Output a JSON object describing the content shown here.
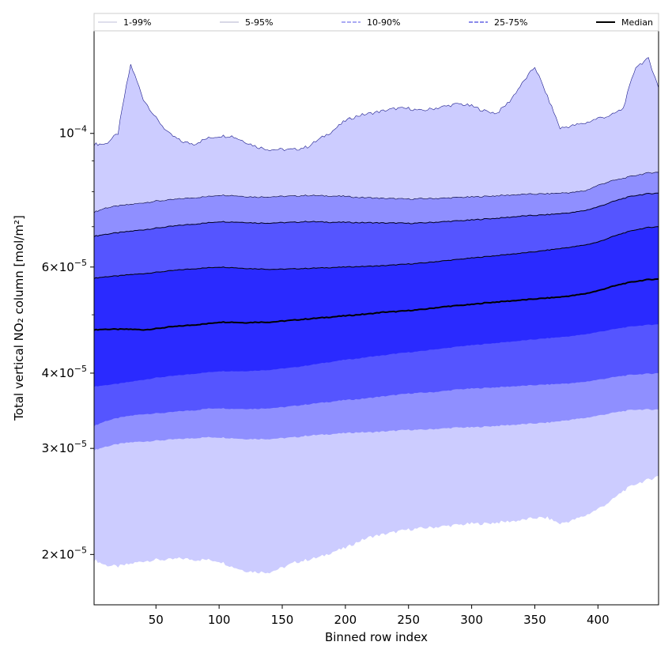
{
  "chart_data": {
    "type": "area",
    "xlabel": "Binned row index",
    "ylabel": "Total vertical NO₂ column [mol/m²]",
    "yscale": "log",
    "xlim": [
      1,
      448
    ],
    "ylim": [
      1.65e-05,
      0.000148
    ],
    "xticks": [
      50,
      100,
      150,
      200,
      250,
      300,
      350,
      400
    ],
    "yticks": [
      {
        "value": 2e-05,
        "mantissa": "2",
        "exp": "−5"
      },
      {
        "value": 3e-05,
        "mantissa": "3",
        "exp": "−5"
      },
      {
        "value": 4e-05,
        "mantissa": "4",
        "exp": "−5"
      },
      {
        "value": 6e-05,
        "mantissa": "6",
        "exp": "−5"
      },
      {
        "value": 0.0001,
        "mantissa": "",
        "exp": "−4"
      }
    ],
    "grid": false,
    "legend": {
      "placement": "top",
      "entries": [
        {
          "label": "1-99%",
          "style": "thin-line"
        },
        {
          "label": "5-95%",
          "style": "thin-line"
        },
        {
          "label": "10-90%",
          "style": "dashed"
        },
        {
          "label": "25-75%",
          "style": "dashed"
        },
        {
          "label": "Median",
          "style": "solid-thick"
        }
      ]
    },
    "colors": {
      "band_5_95": "#ccccff",
      "band_10_90": "#8f8fff",
      "band_25_75": "#5555ff",
      "band_inner": "#2a2aff",
      "median": "#000000",
      "line_1_99": "#1a1a8c"
    },
    "x": [
      1,
      10,
      20,
      30,
      40,
      50,
      60,
      70,
      80,
      90,
      100,
      110,
      120,
      130,
      140,
      150,
      160,
      170,
      180,
      190,
      200,
      210,
      220,
      230,
      240,
      250,
      260,
      270,
      280,
      290,
      300,
      310,
      320,
      330,
      340,
      350,
      360,
      370,
      380,
      390,
      400,
      410,
      420,
      430,
      440,
      448
    ],
    "series": [
      {
        "name": "1-99%",
        "low": [
          1.96e-05,
          1.92e-05,
          1.91e-05,
          1.93e-05,
          1.95e-05,
          1.96e-05,
          1.96e-05,
          1.97e-05,
          1.96e-05,
          1.96e-05,
          1.95e-05,
          1.91e-05,
          1.88e-05,
          1.87e-05,
          1.87e-05,
          1.9e-05,
          1.94e-05,
          1.96e-05,
          1.98e-05,
          2.02e-05,
          2.05e-05,
          2.1e-05,
          2.14e-05,
          2.16e-05,
          2.18e-05,
          2.2e-05,
          2.21e-05,
          2.22e-05,
          2.23e-05,
          2.24e-05,
          2.25e-05,
          2.25e-05,
          2.26e-05,
          2.27e-05,
          2.28e-05,
          2.3e-05,
          2.3e-05,
          2.25e-05,
          2.28e-05,
          2.32e-05,
          2.38e-05,
          2.45e-05,
          2.55e-05,
          2.62e-05,
          2.66e-05,
          2.7e-05
        ],
        "high": [
          9.6e-05,
          9.6e-05,
          0.0001,
          0.00013,
          0.000114,
          0.000106,
          0.0001,
          9.7e-05,
          9.6e-05,
          9.8e-05,
          9.9e-05,
          9.9e-05,
          9.7e-05,
          9.5e-05,
          9.4e-05,
          9.4e-05,
          9.4e-05,
          9.5e-05,
          9.8e-05,
          0.000101,
          0.000105,
          0.000107,
          0.000108,
          0.000109,
          0.00011,
          0.00011,
          0.000109,
          0.00011,
          0.000111,
          0.000112,
          0.000111,
          0.000109,
          0.000108,
          0.000113,
          0.000121,
          0.000129,
          0.000115,
          0.000102,
          0.000103,
          0.000104,
          0.000106,
          0.000107,
          0.00011,
          0.000129,
          0.000133,
          0.000119
        ]
      },
      {
        "name": "5-95%",
        "low": [
          2.98e-05,
          3.02e-05,
          3.05e-05,
          3.07e-05,
          3.08e-05,
          3.09e-05,
          3.1e-05,
          3.11e-05,
          3.12e-05,
          3.13e-05,
          3.13e-05,
          3.12e-05,
          3.11e-05,
          3.11e-05,
          3.11e-05,
          3.12e-05,
          3.13e-05,
          3.15e-05,
          3.16e-05,
          3.17e-05,
          3.18e-05,
          3.19e-05,
          3.19e-05,
          3.2e-05,
          3.21e-05,
          3.22e-05,
          3.22e-05,
          3.23e-05,
          3.24e-05,
          3.25e-05,
          3.25e-05,
          3.26e-05,
          3.27e-05,
          3.28e-05,
          3.29e-05,
          3.3e-05,
          3.31e-05,
          3.33e-05,
          3.35e-05,
          3.37e-05,
          3.4e-05,
          3.43e-05,
          3.46e-05,
          3.48e-05,
          3.48e-05,
          3.48e-05
        ],
        "high": [
          7.4e-05,
          7.52e-05,
          7.58e-05,
          7.62e-05,
          7.67e-05,
          7.72e-05,
          7.75e-05,
          7.79e-05,
          7.82e-05,
          7.85e-05,
          7.9e-05,
          7.89e-05,
          7.86e-05,
          7.84e-05,
          7.85e-05,
          7.86e-05,
          7.87e-05,
          7.89e-05,
          7.88e-05,
          7.87e-05,
          7.86e-05,
          7.83e-05,
          7.82e-05,
          7.8e-05,
          7.79e-05,
          7.78e-05,
          7.79e-05,
          7.8e-05,
          7.81e-05,
          7.83e-05,
          7.84e-05,
          7.86e-05,
          7.88e-05,
          7.9e-05,
          7.92e-05,
          7.93e-05,
          7.94e-05,
          7.96e-05,
          7.98e-05,
          8.03e-05,
          8.2e-05,
          8.33e-05,
          8.42e-05,
          8.52e-05,
          8.6e-05,
          8.62e-05
        ]
      },
      {
        "name": "10-90%",
        "low": [
          3.27e-05,
          3.33e-05,
          3.37e-05,
          3.4e-05,
          3.42e-05,
          3.43e-05,
          3.44e-05,
          3.46e-05,
          3.47e-05,
          3.49e-05,
          3.5e-05,
          3.49e-05,
          3.49e-05,
          3.49e-05,
          3.5e-05,
          3.51e-05,
          3.53e-05,
          3.55e-05,
          3.57e-05,
          3.59e-05,
          3.61e-05,
          3.62e-05,
          3.64e-05,
          3.66e-05,
          3.68e-05,
          3.7e-05,
          3.71e-05,
          3.72e-05,
          3.74e-05,
          3.76e-05,
          3.77e-05,
          3.78e-05,
          3.79e-05,
          3.8e-05,
          3.81e-05,
          3.82e-05,
          3.83e-05,
          3.84e-05,
          3.85e-05,
          3.87e-05,
          3.9e-05,
          3.93e-05,
          3.96e-05,
          3.98e-05,
          3.99e-05,
          4e-05
        ],
        "high": [
          6.75e-05,
          6.8e-05,
          6.84e-05,
          6.88e-05,
          6.92e-05,
          6.96e-05,
          7e-05,
          7.04e-05,
          7.07e-05,
          7.1e-05,
          7.14e-05,
          7.13e-05,
          7.12e-05,
          7.1e-05,
          7.1e-05,
          7.11e-05,
          7.12e-05,
          7.14e-05,
          7.13e-05,
          7.12e-05,
          7.12e-05,
          7.11e-05,
          7.11e-05,
          7.1e-05,
          7.1e-05,
          7.09e-05,
          7.1e-05,
          7.12e-05,
          7.14e-05,
          7.16e-05,
          7.18e-05,
          7.21e-05,
          7.23e-05,
          7.26e-05,
          7.29e-05,
          7.31e-05,
          7.33e-05,
          7.36e-05,
          7.39e-05,
          7.45e-05,
          7.55e-05,
          7.68e-05,
          7.8e-05,
          7.89e-05,
          7.94e-05,
          7.96e-05
        ]
      },
      {
        "name": "25-75%",
        "low": [
          3.8e-05,
          3.82e-05,
          3.84e-05,
          3.87e-05,
          3.9e-05,
          3.93e-05,
          3.95e-05,
          3.97e-05,
          3.99e-05,
          4.01e-05,
          4.03e-05,
          4.03e-05,
          4.03e-05,
          4.04e-05,
          4.05e-05,
          4.07e-05,
          4.09e-05,
          4.12e-05,
          4.15e-05,
          4.18e-05,
          4.21e-05,
          4.23e-05,
          4.26e-05,
          4.28e-05,
          4.31e-05,
          4.33e-05,
          4.35e-05,
          4.38e-05,
          4.4e-05,
          4.43e-05,
          4.45e-05,
          4.47e-05,
          4.49e-05,
          4.51e-05,
          4.53e-05,
          4.55e-05,
          4.57e-05,
          4.59e-05,
          4.61e-05,
          4.64e-05,
          4.68e-05,
          4.72e-05,
          4.76e-05,
          4.79e-05,
          4.81e-05,
          4.82e-05
        ],
        "high": [
          5.75e-05,
          5.78e-05,
          5.8e-05,
          5.83e-05,
          5.85e-05,
          5.88e-05,
          5.91e-05,
          5.94e-05,
          5.96e-05,
          5.98e-05,
          6e-05,
          5.99e-05,
          5.97e-05,
          5.96e-05,
          5.95e-05,
          5.95e-05,
          5.96e-05,
          5.97e-05,
          5.98e-05,
          5.99e-05,
          6e-05,
          6.01e-05,
          6.02e-05,
          6.03e-05,
          6.05e-05,
          6.07e-05,
          6.09e-05,
          6.12e-05,
          6.15e-05,
          6.18e-05,
          6.21e-05,
          6.24e-05,
          6.27e-05,
          6.3e-05,
          6.33e-05,
          6.36e-05,
          6.4e-05,
          6.44e-05,
          6.48e-05,
          6.53e-05,
          6.6e-05,
          6.72e-05,
          6.83e-05,
          6.92e-05,
          6.98e-05,
          7e-05
        ]
      },
      {
        "name": "Median",
        "values": [
          4.72e-05,
          4.73e-05,
          4.73e-05,
          4.73e-05,
          4.72e-05,
          4.74e-05,
          4.77e-05,
          4.79e-05,
          4.81e-05,
          4.83e-05,
          4.86e-05,
          4.86e-05,
          4.85e-05,
          4.86e-05,
          4.86e-05,
          4.88e-05,
          4.9e-05,
          4.92e-05,
          4.94e-05,
          4.96e-05,
          4.98e-05,
          5e-05,
          5.02e-05,
          5.05e-05,
          5.06e-05,
          5.08e-05,
          5.1e-05,
          5.13e-05,
          5.16e-05,
          5.18e-05,
          5.2e-05,
          5.23e-05,
          5.25e-05,
          5.27e-05,
          5.29e-05,
          5.31e-05,
          5.33e-05,
          5.35e-05,
          5.38e-05,
          5.42e-05,
          5.48e-05,
          5.56e-05,
          5.63e-05,
          5.68e-05,
          5.72e-05,
          5.73e-05
        ]
      }
    ]
  }
}
